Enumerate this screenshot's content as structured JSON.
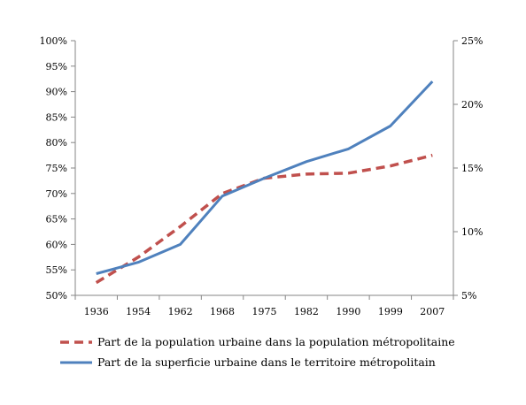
{
  "chart_data": {
    "type": "line",
    "title": "",
    "x": [
      "1936",
      "1954",
      "1962",
      "1968",
      "1975",
      "1982",
      "1990",
      "1999",
      "2007"
    ],
    "y_left": {
      "ticks": [
        "50%",
        "55%",
        "60%",
        "65%",
        "70%",
        "75%",
        "80%",
        "85%",
        "90%",
        "95%",
        "100%"
      ],
      "range": [
        50,
        100
      ]
    },
    "y_right": {
      "ticks": [
        "5%",
        "10%",
        "15%",
        "20%",
        "25%"
      ],
      "range": [
        5,
        25
      ]
    },
    "grid": false,
    "legend_position": "bottom",
    "series": [
      {
        "name": "Part de la population urbaine dans la population métropolitaine",
        "axis": "left",
        "style": "dashed",
        "color": "#c0504d",
        "values": [
          52.5,
          57.5,
          63.5,
          70,
          73,
          73.8,
          74,
          75.4,
          77.5
        ]
      },
      {
        "name": "Part de la superficie urbaine dans le territoire métropolitain",
        "axis": "right",
        "style": "solid",
        "color": "#4f81bd",
        "values": [
          6.7,
          7.6,
          9.0,
          12.8,
          14.2,
          15.5,
          16.5,
          18.3,
          21.8
        ]
      }
    ]
  }
}
